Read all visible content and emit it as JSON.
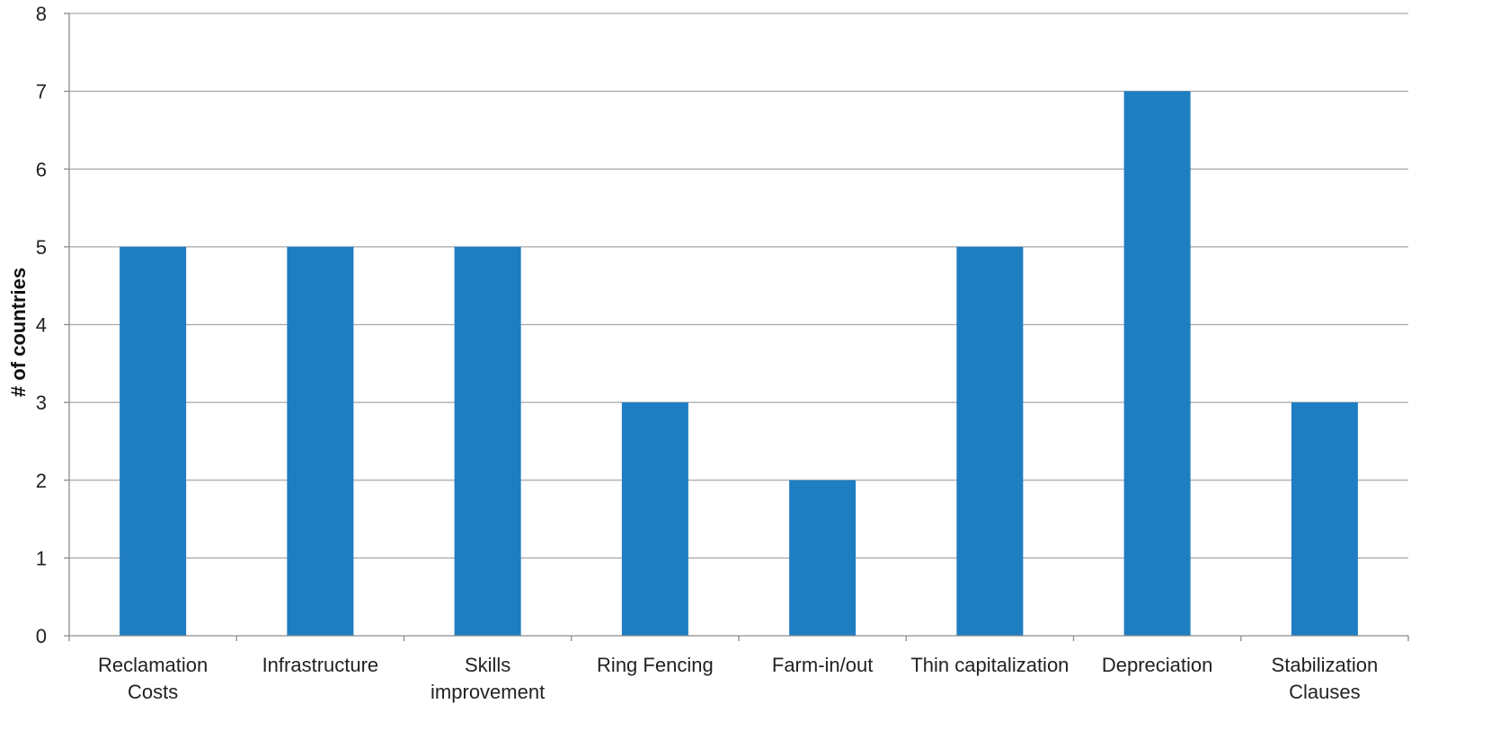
{
  "chart_data": {
    "type": "bar",
    "title": "",
    "xlabel": "",
    "ylabel": "# of countries",
    "ylim": [
      0,
      8
    ],
    "yticks": [
      0,
      1,
      2,
      3,
      4,
      5,
      6,
      7,
      8
    ],
    "grid": true,
    "legend": "none",
    "categories": [
      [
        "Reclamation",
        "Costs"
      ],
      [
        "Infrastructure"
      ],
      [
        "Skills",
        "improvement"
      ],
      [
        "Ring Fencing"
      ],
      [
        "Farm-in/out"
      ],
      [
        "Thin capitalization"
      ],
      [
        "Depreciation"
      ],
      [
        "Stabilization",
        "Clauses"
      ]
    ],
    "values": [
      5,
      5,
      5,
      3,
      2,
      5,
      7,
      3
    ],
    "colors": {
      "bar": "#1f7dc2",
      "grid": "#a6a6a6",
      "axis": "#8c8c8c"
    }
  }
}
